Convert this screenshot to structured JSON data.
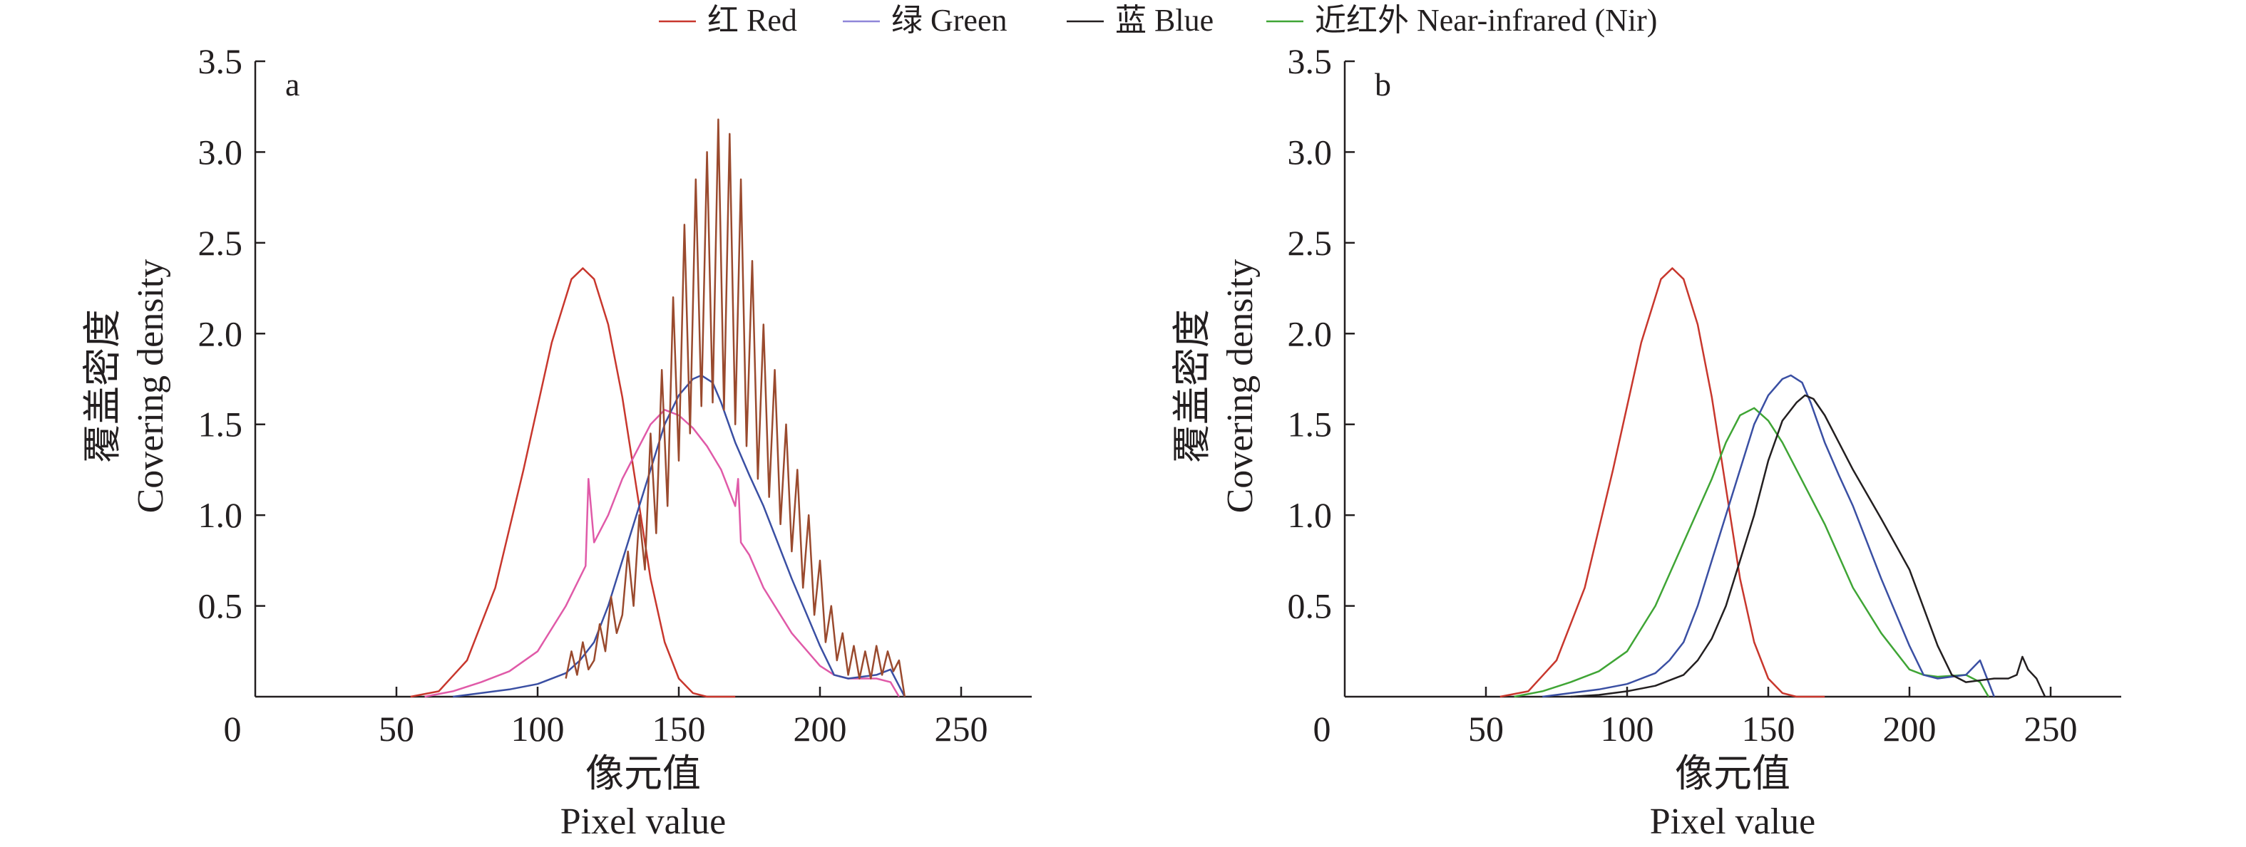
{
  "legend": {
    "placement": "top-center",
    "items": [
      {
        "label": "红 Red",
        "color": "#c8372d"
      },
      {
        "label": "绿 Green",
        "color": "#8f86d9"
      },
      {
        "label": "蓝 Blue",
        "color": "#231f20"
      },
      {
        "label": "近红外 Near-infrared (Nir)",
        "color": "#3fa535"
      }
    ]
  },
  "chart_data": [
    {
      "type": "line",
      "panel_label": "a",
      "xlabel": "像元值",
      "xlabel_en": "Pixel value",
      "ylabel": "覆盖密度",
      "ylabel_en": "Covering density",
      "xlim": [
        0,
        275
      ],
      "ylim": [
        0,
        3.5
      ],
      "xticks": [
        0,
        50,
        100,
        150,
        200,
        250
      ],
      "xtick_labels": [
        "0",
        "50",
        "100",
        "150",
        "200",
        "250"
      ],
      "yticks": [
        0.5,
        1.0,
        1.5,
        2.0,
        2.5,
        3.0,
        3.5
      ],
      "ytick_labels": [
        "0.5",
        "1.0",
        "1.5",
        "2.0",
        "2.5",
        "3.0",
        "3.5"
      ],
      "grid": false,
      "series": [
        {
          "color": "#c8372d",
          "x": [
            55,
            65,
            75,
            85,
            95,
            105,
            112,
            116,
            120,
            125,
            130,
            135,
            140,
            145,
            150,
            155,
            160,
            165,
            170
          ],
          "y": [
            0.0,
            0.03,
            0.2,
            0.6,
            1.25,
            1.95,
            2.3,
            2.36,
            2.3,
            2.05,
            1.65,
            1.15,
            0.65,
            0.3,
            0.1,
            0.02,
            0.0,
            0.0,
            0.0
          ]
        },
        {
          "color": "#e05aa8",
          "x": [
            60,
            70,
            80,
            90,
            100,
            110,
            117,
            118,
            120,
            125,
            130,
            140,
            145,
            150,
            155,
            160,
            165,
            170,
            171,
            172,
            175,
            180,
            190,
            200,
            205,
            210,
            220,
            225,
            228
          ],
          "y": [
            0.0,
            0.03,
            0.08,
            0.14,
            0.25,
            0.5,
            0.72,
            1.2,
            0.85,
            1.0,
            1.2,
            1.5,
            1.58,
            1.55,
            1.48,
            1.38,
            1.25,
            1.05,
            1.2,
            0.85,
            0.78,
            0.6,
            0.35,
            0.17,
            0.12,
            0.1,
            0.1,
            0.08,
            0.0
          ]
        },
        {
          "color": "#3a4fa3",
          "x": [
            70,
            80,
            90,
            100,
            110,
            115,
            120,
            125,
            130,
            135,
            140,
            145,
            150,
            155,
            158,
            162,
            165,
            170,
            175,
            180,
            190,
            200,
            205,
            210,
            220,
            225,
            230
          ],
          "y": [
            0.0,
            0.02,
            0.04,
            0.07,
            0.13,
            0.2,
            0.3,
            0.5,
            0.75,
            1.0,
            1.25,
            1.5,
            1.66,
            1.75,
            1.77,
            1.73,
            1.62,
            1.4,
            1.22,
            1.05,
            0.65,
            0.28,
            0.12,
            0.1,
            0.12,
            0.15,
            0.0
          ]
        },
        {
          "color": "#9a4a2e",
          "x": [
            110,
            112,
            114,
            116,
            118,
            120,
            122,
            124,
            126,
            128,
            130,
            132,
            134,
            136,
            138,
            140,
            142,
            144,
            146,
            148,
            150,
            152,
            154,
            156,
            158,
            160,
            162,
            164,
            166,
            168,
            170,
            172,
            174,
            176,
            178,
            180,
            182,
            184,
            186,
            188,
            190,
            192,
            194,
            196,
            198,
            200,
            202,
            204,
            206,
            208,
            210,
            212,
            214,
            216,
            218,
            220,
            222,
            224,
            226,
            228,
            230
          ],
          "y": [
            0.1,
            0.25,
            0.12,
            0.3,
            0.15,
            0.2,
            0.4,
            0.25,
            0.55,
            0.35,
            0.45,
            0.8,
            0.5,
            1.0,
            0.7,
            1.45,
            0.9,
            1.8,
            1.05,
            2.2,
            1.3,
            2.6,
            1.45,
            2.85,
            1.6,
            3.0,
            1.62,
            3.18,
            1.58,
            3.1,
            1.5,
            2.85,
            1.38,
            2.4,
            1.2,
            2.05,
            1.1,
            1.8,
            0.95,
            1.5,
            0.8,
            1.25,
            0.6,
            1.0,
            0.45,
            0.75,
            0.3,
            0.5,
            0.2,
            0.35,
            0.12,
            0.28,
            0.1,
            0.25,
            0.1,
            0.28,
            0.12,
            0.25,
            0.14,
            0.2,
            0.0
          ]
        }
      ]
    },
    {
      "type": "line",
      "panel_label": "b",
      "xlabel": "像元值",
      "xlabel_en": "Pixel value",
      "ylabel": "覆盖密度",
      "ylabel_en": "Covering density",
      "xlim": [
        0,
        275
      ],
      "ylim": [
        0,
        3.5
      ],
      "xticks": [
        0,
        50,
        100,
        150,
        200,
        250
      ],
      "xtick_labels": [
        "0",
        "50",
        "100",
        "150",
        "200",
        "250"
      ],
      "yticks": [
        0.5,
        1.0,
        1.5,
        2.0,
        2.5,
        3.0,
        3.5
      ],
      "ytick_labels": [
        "0.5",
        "1.0",
        "1.5",
        "2.0",
        "2.5",
        "3.0",
        "3.5"
      ],
      "grid": false,
      "series": [
        {
          "color": "#c8372d",
          "x": [
            55,
            65,
            75,
            85,
            95,
            105,
            112,
            116,
            120,
            125,
            130,
            135,
            140,
            145,
            150,
            155,
            160,
            165,
            170
          ],
          "y": [
            0.0,
            0.03,
            0.2,
            0.6,
            1.25,
            1.95,
            2.3,
            2.36,
            2.3,
            2.05,
            1.65,
            1.15,
            0.65,
            0.3,
            0.1,
            0.02,
            0.0,
            0.0,
            0.0
          ]
        },
        {
          "color": "#3fa535",
          "x": [
            60,
            70,
            80,
            90,
            100,
            110,
            120,
            130,
            135,
            140,
            145,
            150,
            155,
            160,
            165,
            170,
            180,
            190,
            200,
            205,
            210,
            220,
            225,
            228
          ],
          "y": [
            0.0,
            0.03,
            0.08,
            0.14,
            0.25,
            0.5,
            0.85,
            1.2,
            1.4,
            1.55,
            1.59,
            1.52,
            1.4,
            1.25,
            1.1,
            0.95,
            0.6,
            0.35,
            0.15,
            0.12,
            0.11,
            0.12,
            0.08,
            0.0
          ]
        },
        {
          "color": "#3a4fa3",
          "x": [
            70,
            80,
            90,
            100,
            110,
            115,
            120,
            125,
            130,
            135,
            140,
            145,
            150,
            155,
            158,
            162,
            165,
            170,
            175,
            180,
            190,
            200,
            205,
            210,
            220,
            225,
            230
          ],
          "y": [
            0.0,
            0.02,
            0.04,
            0.07,
            0.13,
            0.2,
            0.3,
            0.5,
            0.75,
            1.0,
            1.25,
            1.5,
            1.66,
            1.75,
            1.77,
            1.73,
            1.62,
            1.4,
            1.22,
            1.05,
            0.65,
            0.28,
            0.12,
            0.1,
            0.12,
            0.2,
            0.0
          ]
        },
        {
          "color": "#231f20",
          "x": [
            80,
            90,
            100,
            110,
            120,
            125,
            130,
            135,
            140,
            145,
            150,
            155,
            160,
            163,
            166,
            170,
            175,
            180,
            190,
            200,
            210,
            215,
            220,
            230,
            235,
            238,
            240,
            242,
            245,
            248
          ],
          "y": [
            0.0,
            0.01,
            0.03,
            0.06,
            0.12,
            0.2,
            0.32,
            0.5,
            0.75,
            1.0,
            1.3,
            1.52,
            1.62,
            1.66,
            1.64,
            1.55,
            1.4,
            1.25,
            0.98,
            0.7,
            0.28,
            0.12,
            0.08,
            0.1,
            0.1,
            0.12,
            0.22,
            0.15,
            0.1,
            0.0
          ]
        }
      ]
    }
  ]
}
